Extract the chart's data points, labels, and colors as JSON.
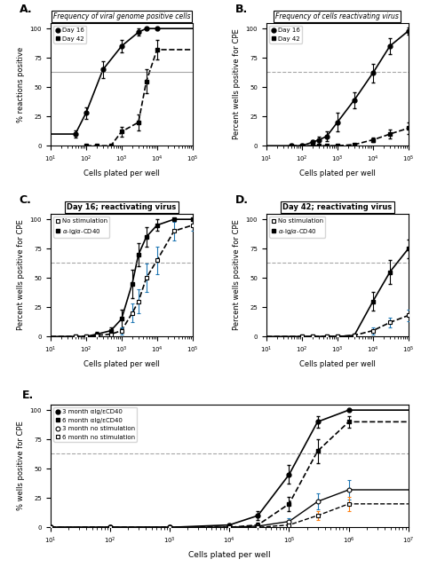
{
  "panel_A": {
    "title": "Frequency of viral genome positive cells",
    "xlabel": "Cells plated per well",
    "ylabel": "% reactions positive",
    "hline": 63,
    "day16_x": [
      50,
      100,
      300,
      1000,
      3000,
      5000,
      10000
    ],
    "day16_y": [
      10,
      28,
      65,
      85,
      97,
      100,
      100
    ],
    "day16_ye": [
      3,
      5,
      7,
      5,
      3,
      0,
      0
    ],
    "day42_x": [
      100,
      200,
      500,
      1000,
      3000,
      5000,
      10000
    ],
    "day42_y": [
      0,
      0,
      0,
      12,
      20,
      55,
      82
    ],
    "day42_ye": [
      0,
      0,
      1,
      4,
      7,
      10,
      8
    ],
    "xlim": [
      10,
      100000
    ],
    "ylim": [
      0,
      105
    ]
  },
  "panel_B": {
    "title": "Frequency of cells reactivating virus",
    "xlabel": "Cells plated per well",
    "ylabel": "Percent wells positive for CPE",
    "hline": 63,
    "day16_x": [
      50,
      100,
      200,
      300,
      500,
      1000,
      3000,
      10000,
      30000,
      100000
    ],
    "day16_y": [
      0,
      0,
      3,
      5,
      8,
      20,
      39,
      62,
      85,
      98
    ],
    "day16_ye": [
      0,
      0,
      2,
      3,
      4,
      8,
      7,
      8,
      7,
      3
    ],
    "day42_x": [
      50,
      100,
      200,
      300,
      500,
      1000,
      3000,
      10000,
      30000,
      100000
    ],
    "day42_y": [
      0,
      0,
      0,
      0,
      0,
      0,
      1,
      5,
      10,
      15
    ],
    "day42_ye": [
      0,
      0,
      0,
      0,
      0,
      1,
      1,
      2,
      4,
      5
    ],
    "xlim": [
      10,
      100000
    ],
    "ylim": [
      0,
      105
    ]
  },
  "panel_C": {
    "title": "Day 16; reactivating virus",
    "xlabel": "Cells plated per well",
    "ylabel": "Percent wells positive for CPE",
    "hline": 63,
    "stim_x": [
      50,
      100,
      200,
      500,
      1000,
      2000,
      3000,
      5000,
      10000,
      30000,
      100000
    ],
    "stim_y": [
      0,
      0,
      2,
      5,
      15,
      45,
      70,
      85,
      95,
      100,
      100
    ],
    "stim_ye": [
      0,
      1,
      2,
      3,
      8,
      12,
      10,
      8,
      5,
      0,
      0
    ],
    "nostim_x": [
      50,
      100,
      200,
      500,
      1000,
      2000,
      3000,
      5000,
      10000,
      30000,
      100000
    ],
    "nostim_y": [
      0,
      0,
      1,
      2,
      5,
      20,
      30,
      50,
      65,
      90,
      95
    ],
    "nostim_ye": [
      0,
      1,
      1,
      2,
      3,
      8,
      10,
      12,
      12,
      8,
      5
    ],
    "xlim": [
      10,
      100000
    ],
    "ylim": [
      0,
      105
    ]
  },
  "panel_D": {
    "title": "Day 42; reactivating virus",
    "xlabel": "Cells plated per well",
    "ylabel": "Percent wells positive for CPE",
    "hline": 63,
    "stim_x": [
      100,
      200,
      500,
      1000,
      3000,
      10000,
      30000,
      100000
    ],
    "stim_y": [
      0,
      0,
      0,
      0,
      1,
      30,
      55,
      75
    ],
    "stim_ye": [
      0,
      0,
      0,
      0,
      1,
      8,
      10,
      8
    ],
    "nostim_x": [
      100,
      200,
      500,
      1000,
      3000,
      10000,
      30000,
      100000
    ],
    "nostim_y": [
      0,
      0,
      0,
      0,
      1,
      5,
      12,
      18
    ],
    "nostim_ye": [
      0,
      0,
      0,
      0,
      1,
      3,
      4,
      5
    ],
    "xlim": [
      10,
      100000
    ],
    "ylim": [
      0,
      105
    ]
  },
  "panel_E": {
    "xlabel": "Cells plated per well",
    "ylabel": "% wells positive for CPE",
    "hline": 63,
    "m3_stim_x": [
      10,
      100,
      1000,
      10000,
      30000,
      100000,
      300000,
      1000000
    ],
    "m3_stim_y": [
      0,
      0,
      0,
      2,
      10,
      45,
      90,
      100
    ],
    "m3_stim_ye": [
      0,
      0,
      0,
      1,
      4,
      8,
      5,
      0
    ],
    "m6_stim_x": [
      10,
      100,
      1000,
      10000,
      30000,
      100000,
      300000,
      1000000
    ],
    "m6_stim_y": [
      0,
      0,
      0,
      0,
      2,
      20,
      65,
      90
    ],
    "m6_stim_ye": [
      0,
      0,
      0,
      0,
      2,
      6,
      10,
      5
    ],
    "m3_nostim_x": [
      10,
      100,
      1000,
      10000,
      30000,
      100000,
      300000,
      1000000
    ],
    "m3_nostim_y": [
      0,
      0,
      0,
      0,
      1,
      5,
      22,
      32
    ],
    "m3_nostim_ye": [
      0,
      0,
      0,
      0,
      1,
      3,
      7,
      8
    ],
    "m6_nostim_x": [
      10,
      100,
      1000,
      10000,
      30000,
      100000,
      300000,
      1000000
    ],
    "m6_nostim_y": [
      0,
      0,
      0,
      0,
      0,
      2,
      10,
      20
    ],
    "m6_nostim_ye": [
      0,
      0,
      0,
      0,
      0,
      1,
      4,
      6
    ],
    "xlim": [
      10,
      10000000
    ],
    "ylim": [
      0,
      105
    ]
  }
}
